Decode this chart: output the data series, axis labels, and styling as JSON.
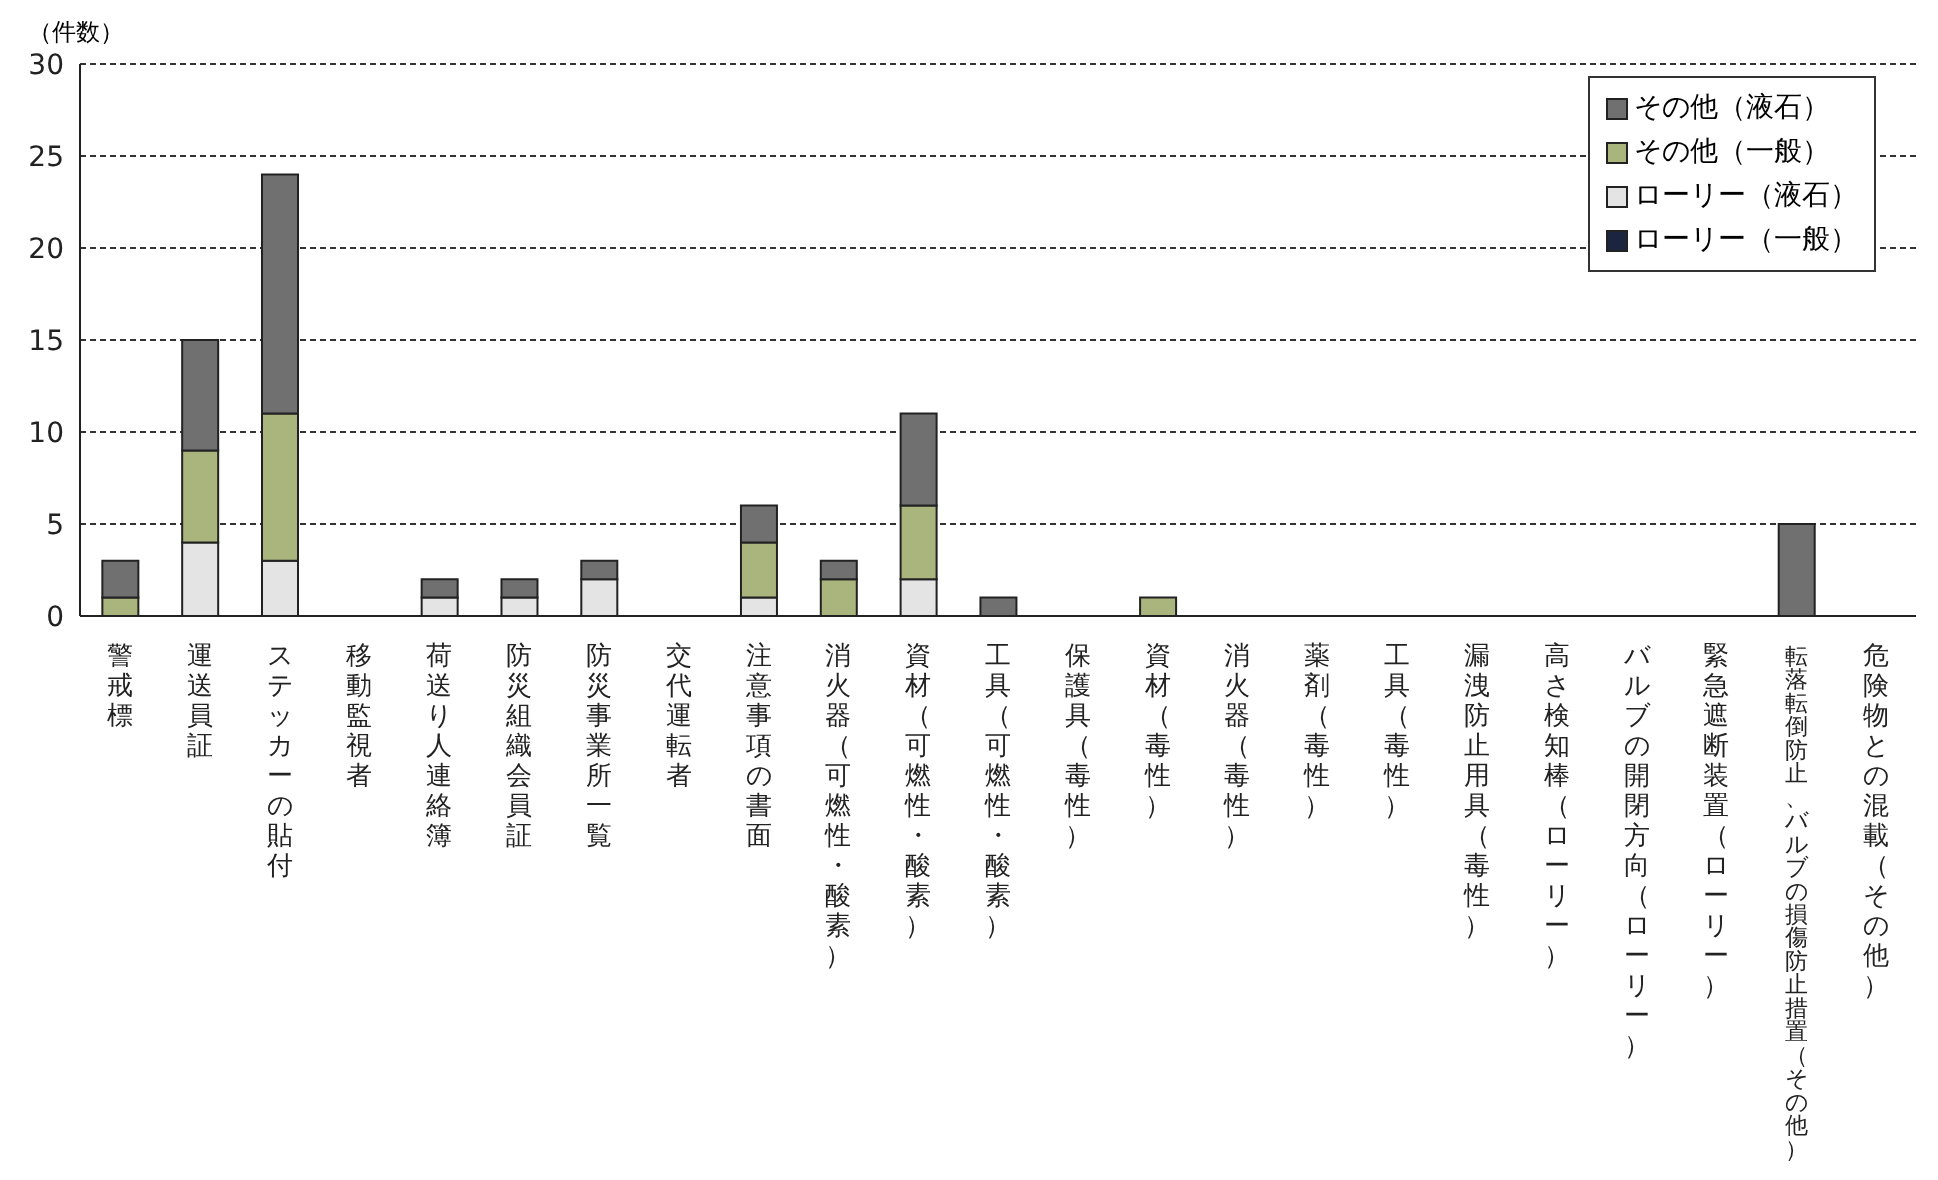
{
  "chart_data": {
    "type": "bar",
    "stacked": true,
    "ylabel": "（件数）",
    "categories": [
      "警戒標",
      "運送員証",
      "ステッカーの貼付",
      "移動監視者",
      "荷送り人連絡簿",
      "防災組織会員証",
      "防災事業所一覧",
      "交代運転者",
      "注意事項の書面",
      "消火器（可燃性・酸素）",
      "資材（可燃性・酸素）",
      "工具（可燃性・酸素）",
      "保護具（毒性）",
      "資材（毒性）",
      "消火器（毒性）",
      "薬剤（毒性）",
      "工具（毒性）",
      "漏洩防止用具（毒性）",
      "高さ検知棒（ローリー）",
      "バルブの開閉方向（ローリー）",
      "緊急遮断装置（ローリー）",
      "転落転倒防止、バルブの損傷防止措置（その他）",
      "危険物との混載（その他）"
    ],
    "series": [
      {
        "name": "ローリー（一般）",
        "color": "#1c2540",
        "values": [
          0,
          0,
          0,
          0,
          0,
          0,
          0,
          0,
          0,
          0,
          0,
          0,
          0,
          0,
          0,
          0,
          0,
          0,
          0,
          0,
          0,
          0,
          0
        ]
      },
      {
        "name": "ローリー（液石）",
        "color": "#e4e4e4",
        "values": [
          0,
          4,
          3,
          0,
          1,
          1,
          2,
          0,
          1,
          0,
          2,
          0,
          0,
          0,
          0,
          0,
          0,
          0,
          0,
          0,
          0,
          0,
          0
        ]
      },
      {
        "name": "その他（一般）",
        "color": "#a9b57c",
        "values": [
          1,
          5,
          8,
          0,
          0,
          0,
          0,
          0,
          3,
          2,
          4,
          0,
          0,
          1,
          0,
          0,
          0,
          0,
          0,
          0,
          0,
          0,
          0
        ]
      },
      {
        "name": "その他（液石）",
        "color": "#707070",
        "values": [
          2,
          6,
          13,
          0,
          1,
          1,
          1,
          0,
          2,
          1,
          5,
          1,
          0,
          0,
          0,
          0,
          0,
          0,
          0,
          0,
          0,
          5,
          0
        ]
      }
    ],
    "ylim": [
      0,
      30
    ],
    "yticks": [
      0,
      5,
      10,
      15,
      20,
      25,
      30
    ],
    "grid": "y",
    "legend": "top right"
  }
}
